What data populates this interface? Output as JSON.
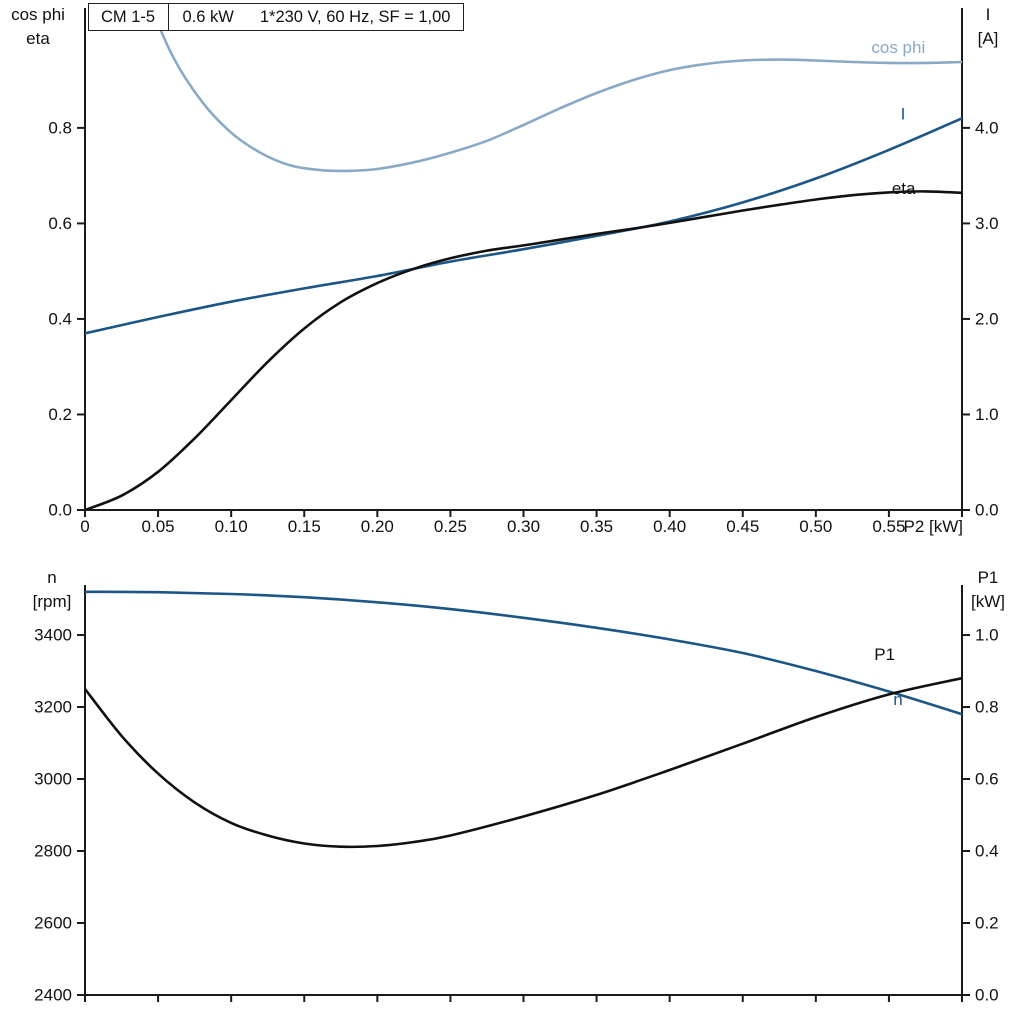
{
  "title_box": {
    "model": "CM 1-5",
    "power": "0.6 kW",
    "conditions": "1*230 V, 60 Hz, SF = 1,00"
  },
  "colors": {
    "cos_phi": "#8aa9c7",
    "dark_blue": "#1c5687",
    "black": "#111111",
    "axis": "#1a1a1a"
  },
  "chart_data": [
    {
      "id": "electrical",
      "type": "line",
      "title": "CM 1-5  0.6 kW  1*230 V, 60 Hz, SF = 1,00",
      "grid": false,
      "x_axis": {
        "label": "P2 [kW]",
        "range": [
          0,
          0.6
        ],
        "ticks": [
          0,
          0.05,
          0.1,
          0.15,
          0.2,
          0.25,
          0.3,
          0.35,
          0.4,
          0.45,
          0.5,
          0.55,
          0.6
        ],
        "tick_labels": [
          "0",
          "0.05",
          "0.10",
          "0.15",
          "0.20",
          "0.25",
          "0.30",
          "0.35",
          "0.40",
          "0.45",
          "0.50",
          "0.55",
          ""
        ]
      },
      "left_axis": {
        "title_lines": [
          "cos phi",
          "eta"
        ],
        "range": [
          0,
          1.051
        ],
        "ticks": [
          0,
          0.2,
          0.4,
          0.6,
          0.8
        ],
        "tick_labels": [
          "0.0",
          "0.2",
          "0.4",
          "0.6",
          "0.8"
        ]
      },
      "right_axis": {
        "title_lines": [
          "I",
          "[A]"
        ],
        "range": [
          0,
          5.255
        ],
        "ticks": [
          0,
          1,
          2,
          3,
          4
        ],
        "tick_labels": [
          "0.0",
          "1.0",
          "2.0",
          "3.0",
          "4.0"
        ]
      },
      "series": [
        {
          "name": "cos phi",
          "axis": "left",
          "color": "#8aa9c7",
          "points": [
            [
              0.04,
              1.09
            ],
            [
              0.06,
              0.95
            ],
            [
              0.08,
              0.855
            ],
            [
              0.1,
              0.79
            ],
            [
              0.12,
              0.748
            ],
            [
              0.14,
              0.722
            ],
            [
              0.16,
              0.712
            ],
            [
              0.18,
              0.71
            ],
            [
              0.2,
              0.714
            ],
            [
              0.225,
              0.728
            ],
            [
              0.25,
              0.748
            ],
            [
              0.275,
              0.773
            ],
            [
              0.3,
              0.806
            ],
            [
              0.325,
              0.841
            ],
            [
              0.35,
              0.873
            ],
            [
              0.375,
              0.9
            ],
            [
              0.4,
              0.921
            ],
            [
              0.425,
              0.934
            ],
            [
              0.45,
              0.941
            ],
            [
              0.475,
              0.943
            ],
            [
              0.5,
              0.941
            ],
            [
              0.525,
              0.938
            ],
            [
              0.55,
              0.936
            ],
            [
              0.575,
              0.936
            ],
            [
              0.6,
              0.938
            ]
          ]
        },
        {
          "name": "I",
          "axis": "right",
          "color": "#1c5687",
          "points": [
            [
              0,
              1.85
            ],
            [
              0.05,
              2.02
            ],
            [
              0.1,
              2.18
            ],
            [
              0.15,
              2.32
            ],
            [
              0.2,
              2.45
            ],
            [
              0.25,
              2.6
            ],
            [
              0.3,
              2.73
            ],
            [
              0.35,
              2.87
            ],
            [
              0.4,
              3.02
            ],
            [
              0.45,
              3.22
            ],
            [
              0.5,
              3.47
            ],
            [
              0.55,
              3.77
            ],
            [
              0.6,
              4.1
            ]
          ]
        },
        {
          "name": "eta",
          "axis": "left",
          "color": "#111111",
          "points": [
            [
              0,
              0
            ],
            [
              0.025,
              0.03
            ],
            [
              0.05,
              0.08
            ],
            [
              0.075,
              0.15
            ],
            [
              0.1,
              0.23
            ],
            [
              0.125,
              0.31
            ],
            [
              0.15,
              0.38
            ],
            [
              0.175,
              0.435
            ],
            [
              0.2,
              0.475
            ],
            [
              0.225,
              0.505
            ],
            [
              0.25,
              0.527
            ],
            [
              0.275,
              0.543
            ],
            [
              0.3,
              0.554
            ],
            [
              0.325,
              0.566
            ],
            [
              0.35,
              0.578
            ],
            [
              0.375,
              0.589
            ],
            [
              0.4,
              0.601
            ],
            [
              0.425,
              0.614
            ],
            [
              0.45,
              0.627
            ],
            [
              0.475,
              0.639
            ],
            [
              0.5,
              0.65
            ],
            [
              0.525,
              0.659
            ],
            [
              0.55,
              0.665
            ],
            [
              0.575,
              0.667
            ],
            [
              0.6,
              0.664
            ]
          ]
        }
      ],
      "labels": [
        {
          "text": "cos phi",
          "axis": "left",
          "x": 0.538,
          "y": 0.957,
          "color": "#8aa9c7"
        },
        {
          "text": "I",
          "axis": "right",
          "x": 0.558,
          "y": 4.09,
          "color": "#1c5687"
        },
        {
          "text": "eta",
          "axis": "left",
          "x": 0.552,
          "y": 0.662,
          "color": "#111111"
        }
      ]
    },
    {
      "id": "mechanical",
      "type": "line",
      "title": "",
      "grid": false,
      "x_axis": {
        "label": "",
        "range": [
          0,
          0.6
        ],
        "ticks": [
          0,
          0.05,
          0.1,
          0.15,
          0.2,
          0.25,
          0.3,
          0.35,
          0.4,
          0.45,
          0.5,
          0.55,
          0.6
        ],
        "tick_labels": [
          "",
          "",
          "",
          "",
          "",
          "",
          "",
          "",
          "",
          "",
          "",
          "",
          ""
        ]
      },
      "left_axis": {
        "title_lines": [
          "n",
          "[rpm]"
        ],
        "range": [
          2400,
          3539
        ],
        "ticks": [
          2400,
          2600,
          2800,
          3000,
          3200,
          3400
        ],
        "tick_labels": [
          "2400",
          "2600",
          "2800",
          "3000",
          "3200",
          "3400"
        ]
      },
      "right_axis": {
        "title_lines": [
          "P1",
          "[kW]"
        ],
        "range": [
          0,
          1.139
        ],
        "ticks": [
          0,
          0.2,
          0.4,
          0.6,
          0.8,
          1.0
        ],
        "tick_labels": [
          "0.0",
          "0.2",
          "0.4",
          "0.6",
          "0.8",
          "1.0"
        ]
      },
      "series": [
        {
          "name": "n",
          "axis": "left",
          "color": "#1c5687",
          "points": [
            [
              0,
              3520
            ],
            [
              0.05,
              3519
            ],
            [
              0.1,
              3514
            ],
            [
              0.15,
              3505
            ],
            [
              0.2,
              3491
            ],
            [
              0.25,
              3472
            ],
            [
              0.3,
              3448
            ],
            [
              0.35,
              3420
            ],
            [
              0.4,
              3388
            ],
            [
              0.45,
              3350
            ],
            [
              0.5,
              3300
            ],
            [
              0.55,
              3243
            ],
            [
              0.6,
              3180
            ]
          ]
        },
        {
          "name": "P1",
          "axis": "right",
          "color": "#111111",
          "points": [
            [
              0,
              0.85
            ],
            [
              0.025,
              0.72
            ],
            [
              0.05,
              0.615
            ],
            [
              0.075,
              0.535
            ],
            [
              0.1,
              0.478
            ],
            [
              0.125,
              0.443
            ],
            [
              0.15,
              0.421
            ],
            [
              0.175,
              0.412
            ],
            [
              0.2,
              0.414
            ],
            [
              0.225,
              0.425
            ],
            [
              0.25,
              0.443
            ],
            [
              0.3,
              0.496
            ],
            [
              0.35,
              0.556
            ],
            [
              0.4,
              0.625
            ],
            [
              0.45,
              0.698
            ],
            [
              0.5,
              0.772
            ],
            [
              0.55,
              0.835
            ],
            [
              0.6,
              0.88
            ]
          ]
        }
      ],
      "labels": [
        {
          "text": "P1",
          "axis": "right",
          "x": 0.54,
          "y": 0.93,
          "color": "#111111"
        },
        {
          "text": "n",
          "axis": "left",
          "x": 0.553,
          "y": 3205,
          "color": "#1c5687"
        }
      ]
    }
  ]
}
